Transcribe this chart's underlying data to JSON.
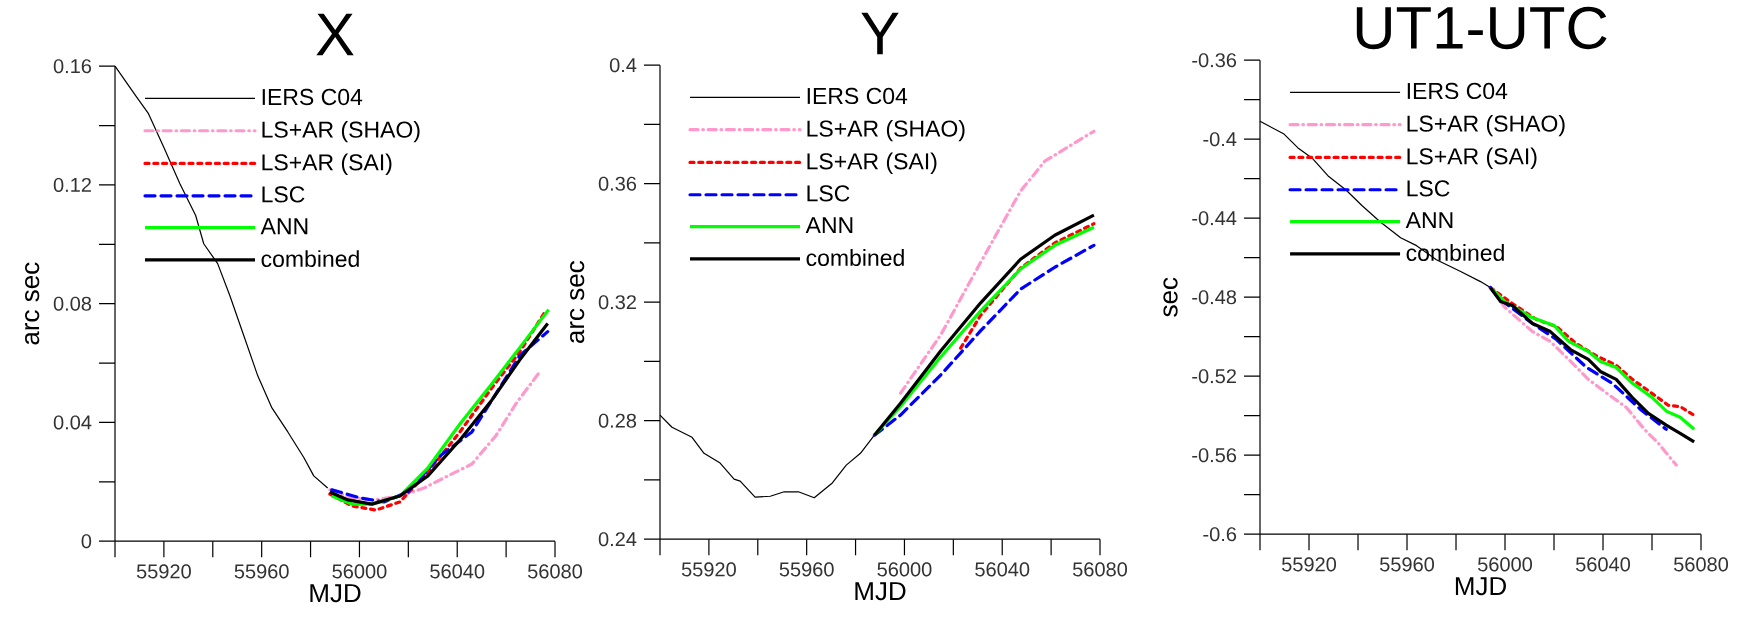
{
  "chart_data": [
    {
      "type": "line",
      "title": "X",
      "xlabel": "MJD",
      "ylabel": "arc sec",
      "xlim": [
        55900,
        56080
      ],
      "ylim": [
        0,
        0.16
      ],
      "xticks": [
        {
          "value": 55900,
          "label": null
        },
        55920,
        {
          "value": 55940,
          "label": null
        },
        55960,
        {
          "value": 55980,
          "label": null
        },
        56000,
        {
          "value": 56020,
          "label": null
        },
        56040,
        {
          "value": 56060,
          "label": null
        },
        56080
      ],
      "yticks": [
        0,
        {
          "value": 0.02,
          "label": null
        },
        0.04,
        {
          "value": 0.06,
          "label": null
        },
        0.08,
        {
          "value": 0.1,
          "label": null
        },
        0.12,
        {
          "value": 0.14,
          "label": null
        },
        0.16
      ],
      "legend": "top left",
      "series": [
        {
          "name": "IERS C04",
          "color": "#000000",
          "line_style": "solid",
          "x": [
            55900,
            55908.5,
            55913.7,
            55920,
            55926.5,
            55933,
            55936.3,
            55942,
            55947,
            55952.7,
            55958.4,
            55964.2,
            55970.7,
            55977.3,
            55981.3,
            55987
          ],
          "values": [
            0.16,
            0.15,
            0.144,
            0.1326,
            0.1205,
            0.1097,
            0.1002,
            0.0935,
            0.0827,
            0.0692,
            0.0557,
            0.0449,
            0.0368,
            0.0281,
            0.022,
            0.0179
          ]
        },
        {
          "name": "LS+AR (SHAO)",
          "color": "#ff99cc",
          "line_style": "dashdot",
          "x": [
            55987.9,
            55996.9,
            56005.9,
            56016.5,
            56026.4,
            56034.5,
            56046,
            56055.8,
            56064,
            56073.8
          ],
          "values": [
            0.0173,
            0.0146,
            0.0139,
            0.0152,
            0.0179,
            0.0213,
            0.026,
            0.0355,
            0.0463,
            0.0571
          ]
        },
        {
          "name": "LS+AR (SAI)",
          "color": "#ff0000",
          "line_style": "dotted",
          "x": [
            55987.9,
            55996.9,
            56006.7,
            56016.5,
            56028,
            56041.1,
            56054.2,
            56065.6,
            56075.4
          ],
          "values": [
            0.0159,
            0.0119,
            0.0105,
            0.0132,
            0.0233,
            0.0368,
            0.0517,
            0.0638,
            0.0766
          ]
        },
        {
          "name": "LSC",
          "color": "#0000ff",
          "line_style": "dashed",
          "x": [
            55988.7,
            56000.2,
            56010,
            56019.8,
            56032.9,
            56046,
            56057.4,
            56065.6,
            56077
          ],
          "values": [
            0.0173,
            0.0146,
            0.0132,
            0.0166,
            0.0287,
            0.0368,
            0.0517,
            0.0625,
            0.0706
          ]
        },
        {
          "name": "ANN",
          "color": "#00ff00",
          "line_style": "solid",
          "x": [
            55988.7,
            55996.9,
            56005.1,
            56016.5,
            56028,
            56041.1,
            56054.2,
            56065.6,
            56077.4
          ],
          "values": [
            0.0152,
            0.0125,
            0.0125,
            0.0152,
            0.0247,
            0.0395,
            0.053,
            0.0652,
            0.078
          ]
        },
        {
          "name": "combined",
          "color": "#000000",
          "line_style": "solid",
          "x": [
            55987.9,
            55995.3,
            56005.1,
            56016.5,
            56028,
            56041.1,
            56054.2,
            56065.6,
            56077
          ],
          "values": [
            0.0166,
            0.0139,
            0.0125,
            0.0152,
            0.022,
            0.0341,
            0.0476,
            0.0611,
            0.0733
          ]
        }
      ]
    },
    {
      "type": "line",
      "title": "Y",
      "xlabel": "MJD",
      "ylabel": "arc sec",
      "xlim": [
        55900,
        56080
      ],
      "ylim": [
        0.24,
        0.4
      ],
      "xticks": [
        {
          "value": 55900,
          "label": null
        },
        55920,
        {
          "value": 55940,
          "label": null
        },
        55960,
        {
          "value": 55980,
          "label": null
        },
        56000,
        {
          "value": 56020,
          "label": null
        },
        56040,
        {
          "value": 56060,
          "label": null
        },
        56080
      ],
      "yticks": [
        0.24,
        {
          "value": 0.26,
          "label": null
        },
        0.28,
        {
          "value": 0.3,
          "label": null
        },
        0.32,
        {
          "value": 0.34,
          "label": null
        },
        0.36,
        {
          "value": 0.38,
          "label": null
        },
        0.4
      ],
      "legend": "top left",
      "series": [
        {
          "name": "IERS C04",
          "color": "#000000",
          "line_style": "solid",
          "x": [
            55900,
            55904.9,
            55913.1,
            55918,
            55924.6,
            55930.3,
            55932.8,
            55938.9,
            55945.1,
            55950.8,
            55956.6,
            55963.1,
            55970.5,
            55976.2,
            55982,
            55987.7
          ],
          "values": [
            0.2819,
            0.2778,
            0.2744,
            0.269,
            0.2657,
            0.2603,
            0.2596,
            0.2542,
            0.2545,
            0.256,
            0.256,
            0.254,
            0.259,
            0.265,
            0.269,
            0.2751
          ]
        },
        {
          "name": "LS+AR (SHAO)",
          "color": "#ff99cc",
          "line_style": "dashdot",
          "x": [
            55998.4,
            56014.8,
            56031,
            56047.5,
            56057.4,
            56077.5
          ],
          "values": [
            0.2893,
            0.3089,
            0.3332,
            0.3575,
            0.3676,
            0.3777
          ]
        },
        {
          "name": "LS+AR (SAI)",
          "color": "#ff0000",
          "line_style": "dotted",
          "x": [
            56023,
            56031.1,
            56047.5,
            56061.5,
            56077.5
          ],
          "values": [
            0.3045,
            0.3155,
            0.3315,
            0.34,
            0.3465
          ]
        },
        {
          "name": "LSC",
          "color": "#0000ff",
          "line_style": "dashed",
          "x": [
            55987.7,
            55998.4,
            56014.8,
            56031.1,
            56047.5,
            56061.5,
            56077.5
          ],
          "values": [
            0.2751,
            0.2819,
            0.2954,
            0.3103,
            0.3244,
            0.3318,
            0.3392
          ]
        },
        {
          "name": "ANN",
          "color": "#00ff00",
          "line_style": "solid",
          "x": [
            55987.7,
            55998.4,
            56014.8,
            56031.1,
            56047.5,
            56061.5,
            56077.5
          ],
          "values": [
            0.2751,
            0.2848,
            0.3015,
            0.317,
            0.3312,
            0.3392,
            0.3453
          ]
        },
        {
          "name": "combined",
          "color": "#000000",
          "line_style": "solid",
          "x": [
            55987.7,
            55998.4,
            56014.8,
            56031.1,
            56047.5,
            56061.5,
            56077.5
          ],
          "values": [
            0.2751,
            0.2859,
            0.3035,
            0.3197,
            0.3345,
            0.3426,
            0.3494
          ]
        }
      ]
    },
    {
      "type": "line",
      "title": "UT1-UTC",
      "xlabel": "MJD",
      "ylabel": "sec",
      "xlim": [
        55900,
        56080
      ],
      "ylim": [
        -0.6,
        -0.36
      ],
      "xticks": [
        {
          "value": 55900,
          "label": null
        },
        55920,
        {
          "value": 55940,
          "label": null
        },
        55960,
        {
          "value": 55980,
          "label": null
        },
        56000,
        {
          "value": 56020,
          "label": null
        },
        56040,
        {
          "value": 56060,
          "label": null
        },
        56080
      ],
      "yticks": [
        -0.6,
        {
          "value": -0.58,
          "label": null
        },
        -0.56,
        {
          "value": -0.54,
          "label": null
        },
        -0.52,
        {
          "value": -0.5,
          "label": null
        },
        -0.48,
        {
          "value": -0.46,
          "label": null
        },
        -0.44,
        {
          "value": -0.42,
          "label": null
        },
        -0.4,
        {
          "value": -0.38,
          "label": null
        },
        -0.36
      ],
      "legend": "top left",
      "series": [
        {
          "name": "IERS C04",
          "color": "#000000",
          "line_style": "solid",
          "x": [
            55900,
            55909.8,
            55915.5,
            55921.2,
            55927.8,
            55935.1,
            55941.7,
            55949,
            55957.4,
            55963.9,
            55972,
            55981.9,
            55990,
            55994
          ],
          "values": [
            -0.3909,
            -0.3974,
            -0.4044,
            -0.4095,
            -0.4186,
            -0.4257,
            -0.4337,
            -0.4418,
            -0.4499,
            -0.4539,
            -0.461,
            -0.467,
            -0.4721,
            -0.4751
          ]
        },
        {
          "name": "LS+AR (SHAO)",
          "color": "#ff99cc",
          "line_style": "dashdot",
          "x": [
            55994,
            56000,
            56011.2,
            56018.5,
            56026,
            56034,
            56040.5,
            56049.5,
            56056.9,
            56062.6,
            56069.9
          ],
          "values": [
            -0.4751,
            -0.4852,
            -0.4974,
            -0.5024,
            -0.5115,
            -0.5216,
            -0.5277,
            -0.5358,
            -0.5469,
            -0.554,
            -0.565
          ]
        },
        {
          "name": "LS+AR (SAI)",
          "color": "#ff0000",
          "line_style": "dotted",
          "x": [
            55994,
            56003,
            56012.8,
            56021,
            56029,
            56037,
            56045.4,
            56052,
            56060,
            56066.6,
            56071.5,
            56077.2
          ],
          "values": [
            -0.4751,
            -0.4832,
            -0.4913,
            -0.4949,
            -0.5034,
            -0.5095,
            -0.5145,
            -0.5216,
            -0.5287,
            -0.5347,
            -0.5354,
            -0.5398
          ]
        },
        {
          "name": "LSC",
          "color": "#0000ff",
          "line_style": "dashed",
          "x": [
            55994,
            55998.2,
            56011.2,
            56021,
            56033.2,
            56043.8,
            56055.3,
            56065.8
          ],
          "values": [
            -0.4751,
            -0.4812,
            -0.4933,
            -0.5014,
            -0.5155,
            -0.5236,
            -0.5368,
            -0.5469
          ]
        },
        {
          "name": "ANN",
          "color": "#00ff00",
          "line_style": "solid",
          "x": [
            55994,
            56000,
            56011,
            56020,
            56026,
            56034,
            56039,
            56045.4,
            56052,
            56060,
            56066,
            56071.5,
            56077.2
          ],
          "values": [
            -0.4751,
            -0.4822,
            -0.4903,
            -0.4943,
            -0.5024,
            -0.5075,
            -0.5125,
            -0.5156,
            -0.5236,
            -0.5307,
            -0.5378,
            -0.5408,
            -0.5469
          ]
        },
        {
          "name": "combined",
          "color": "#000000",
          "line_style": "solid",
          "x": [
            55994,
            55998.2,
            56003,
            56011.2,
            56018.5,
            56026.7,
            56034,
            56038.9,
            56045.4,
            56051.9,
            56058.5,
            56065.8,
            56071.5,
            56077.2
          ],
          "values": [
            -0.4751,
            -0.4822,
            -0.4842,
            -0.4933,
            -0.4974,
            -0.5065,
            -0.5115,
            -0.5176,
            -0.5216,
            -0.5307,
            -0.5388,
            -0.5448,
            -0.5489,
            -0.5533
          ]
        }
      ]
    }
  ]
}
